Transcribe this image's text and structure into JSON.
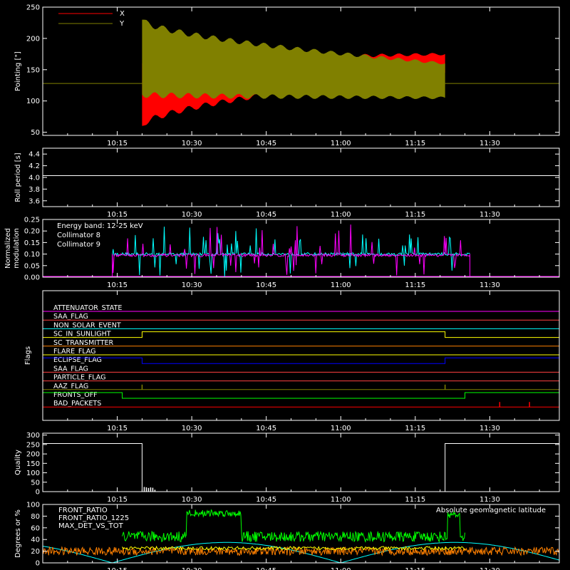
{
  "colors": {
    "background": "#000000",
    "axes": "#ffffff",
    "x_pointing": "#ff0000",
    "y_pointing": "#808000",
    "collimator_8": "#00ffff",
    "collimator_9": "#ff00ff",
    "front_ratio": "#ffff00",
    "front_ratio_1225": "#00ff00",
    "max_det_vs_tot": "#ff8000",
    "geomagnetic_latitude": "#00ffff"
  },
  "chart_data": [
    {
      "id": "pointing",
      "type": "line",
      "xlabel": "",
      "ylabel": "Pointing [\"]",
      "ylim": [
        45,
        250
      ],
      "yticks": [
        "50",
        "100",
        "150",
        "200",
        "250"
      ],
      "ytick_values": [
        50,
        100,
        150,
        200,
        250
      ],
      "xlim": [
        "10:00",
        "11:44"
      ],
      "xticks": [
        "10:15",
        "10:30",
        "10:45",
        "11:00",
        "11:15",
        "11:30"
      ],
      "legend": {
        "placement": "top-left",
        "entries": [
          "X",
          "Y"
        ]
      },
      "series": [
        {
          "name": "X",
          "baseline": 128,
          "start": "10:20",
          "end": "11:21",
          "envelope_start": [
            60,
            160
          ],
          "envelope_end": [
            145,
            175
          ]
        },
        {
          "name": "Y",
          "baseline": 128,
          "start": "10:20",
          "end": "11:21",
          "envelope_start": [
            110,
            230
          ],
          "envelope_end": [
            105,
            160
          ]
        }
      ]
    },
    {
      "id": "roll-period",
      "type": "line",
      "ylabel": "Roll period [s]",
      "ylim": [
        3.5,
        4.5
      ],
      "yticks": [
        "3.6",
        "3.8",
        "4.0",
        "4.2",
        "4.4"
      ],
      "ytick_values": [
        3.6,
        3.8,
        4.0,
        4.2,
        4.4
      ],
      "xticks": [
        "10:15",
        "10:30",
        "10:45",
        "11:00",
        "11:15",
        "11:30"
      ],
      "series": [
        {
          "value": 4.03,
          "start": "10:00",
          "end": "11:44"
        }
      ]
    },
    {
      "id": "modulation",
      "type": "line",
      "ylabel": [
        "Normalized",
        "modulation"
      ],
      "ylim": [
        0,
        0.25
      ],
      "yticks": [
        "0.00",
        "0.05",
        "0.10",
        "0.15",
        "0.20",
        "0.25"
      ],
      "ytick_values": [
        0,
        0.05,
        0.1,
        0.15,
        0.2,
        0.25
      ],
      "xticks": [
        "10:15",
        "10:30",
        "10:45",
        "11:00",
        "11:15",
        "11:30"
      ],
      "annotation": "Energy band: 12-25 keV",
      "legend": {
        "placement": "top-left",
        "entries": [
          "Collimator 8",
          "Collimator 9"
        ]
      },
      "series": [
        {
          "name": "Collimator 8",
          "typical": 0.1,
          "start": "10:14",
          "end": "11:26"
        },
        {
          "name": "Collimator 9",
          "typical": 0.095,
          "start": "10:14",
          "end": "11:26"
        }
      ]
    },
    {
      "id": "flags",
      "type": "line",
      "ylabel": "Flags",
      "xticks": [
        "10:15",
        "10:30",
        "10:45",
        "11:00",
        "11:15",
        "11:30"
      ],
      "flags": [
        {
          "label": "ATTENUATOR_STATE",
          "color": "#ff00ff",
          "steps": []
        },
        {
          "label": "SAA_FLAG",
          "color": "#ff4040",
          "steps": []
        },
        {
          "label": "NON_SOLAR_EVENT",
          "color": "#00ffff",
          "steps": []
        },
        {
          "label": "SC_IN_SUNLIGHT",
          "color": "#ffff00",
          "steps": [
            [
              "10:20",
              "11:21"
            ]
          ]
        },
        {
          "label": "SC_TRANSMITTER",
          "color": "#ff8000",
          "steps": []
        },
        {
          "label": "FLARE_FLAG",
          "color": "#ffff00",
          "steps": []
        },
        {
          "label": "ECLIPSE_FLAG",
          "color": "#0000ff",
          "steps": [
            [
              "10:00",
              "10:20"
            ],
            [
              "11:21",
              "11:44"
            ]
          ]
        },
        {
          "label": "SAA_FLAG",
          "color": "#ff4040",
          "steps": []
        },
        {
          "label": "PARTICLE_FLAG",
          "color": "#ff4040",
          "steps": []
        },
        {
          "label": "AAZ_FLAG",
          "color": "#808000",
          "spikes": [
            "10:20",
            "11:21"
          ]
        },
        {
          "label": "FRONTS_OFF",
          "color": "#00ff00",
          "steps": [
            [
              "10:00",
              "10:16"
            ],
            [
              "11:25",
              "11:44"
            ]
          ]
        },
        {
          "label": "BAD_PACKETS",
          "color": "#ff0000",
          "spikes": [
            "11:32",
            "11:38"
          ]
        }
      ]
    },
    {
      "id": "quality",
      "type": "line",
      "ylabel": "Quality",
      "ylim": [
        0,
        310
      ],
      "yticks": [
        "0",
        "50",
        "100",
        "150",
        "200",
        "250",
        "300"
      ],
      "ytick_values": [
        0,
        50,
        100,
        150,
        200,
        250,
        300
      ],
      "xticks": [
        "10:15",
        "10:30",
        "10:45",
        "11:00",
        "11:15",
        "11:30"
      ],
      "series": [
        {
          "high": 255,
          "low": 0,
          "segments_high": [
            [
              "10:00",
              "10:20"
            ],
            [
              "11:21",
              "11:44"
            ]
          ]
        }
      ]
    },
    {
      "id": "ratios",
      "type": "line",
      "ylabel": "Degrees or %",
      "ylim": [
        0,
        100
      ],
      "yticks": [
        "0",
        "20",
        "40",
        "60",
        "80",
        "100"
      ],
      "ytick_values": [
        0,
        20,
        40,
        60,
        80,
        100
      ],
      "xticks": [
        "10:15",
        "10:30",
        "10:45",
        "11:00",
        "11:15",
        "11:30"
      ],
      "legend_left": [
        "FRONT_RATIO",
        "FRONT_RATIO_1225",
        "MAX_DET_VS_TOT"
      ],
      "legend_right": "Absolute geomagnetic latitude",
      "series": [
        {
          "name": "FRONT_RATIO",
          "typical": 25
        },
        {
          "name": "FRONT_RATIO_1225",
          "typical": 45,
          "high_interval": [
            "10:29",
            "10:40"
          ],
          "high_value": 85
        },
        {
          "name": "MAX_DET_VS_TOT",
          "typical": 20
        },
        {
          "name": "Absolute geomagnetic latitude",
          "min": 0,
          "max": 35
        }
      ]
    }
  ]
}
